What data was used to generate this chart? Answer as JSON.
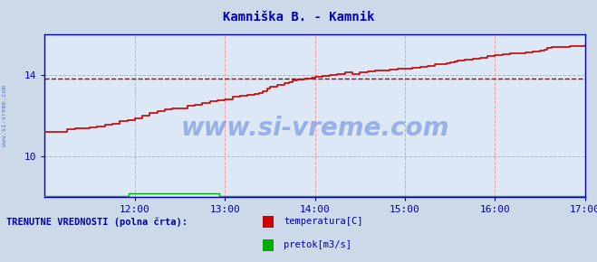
{
  "title": "Kamniška B. - Kamnik",
  "title_color": "#0000bb",
  "bg_color": "#ccd9e8",
  "plot_bg_color": "#dce8f5",
  "grid_color_v": "#ff9999",
  "grid_color_h": "#ff9999",
  "xlim": [
    0,
    360
  ],
  "ylim": [
    8,
    16
  ],
  "yticks": [
    10,
    14
  ],
  "xtick_labels": [
    "12:00",
    "13:00",
    "14:00",
    "15:00",
    "16:00",
    "17:00"
  ],
  "xtick_positions": [
    60,
    120,
    180,
    240,
    300,
    360
  ],
  "avg_line_value": 13.8,
  "avg_line_color": "#aa0000",
  "temp_color": "#cc0000",
  "flow_color": "#00aa00",
  "flow_color2": "#0000cc",
  "watermark": "www.si-vreme.com",
  "watermark_color": "#1a4acc",
  "watermark_alpha": 0.35,
  "side_label": "www.si-vreme.com",
  "legend_label1": "temperatura[C]",
  "legend_label2": "pretok[m3/s]",
  "legend_color1": "#cc0000",
  "legend_color2": "#00aa00",
  "footer_text": "TRENUTNE VREDNOSTI (polna črta):",
  "footer_color": "#0000bb",
  "axis_color": "#0000bb",
  "tick_color": "#0000bb",
  "tick_fontsize": 8,
  "title_fontsize": 10,
  "temp_data_x": [
    0,
    10,
    15,
    20,
    25,
    30,
    35,
    40,
    45,
    50,
    55,
    60,
    65,
    70,
    72,
    75,
    80,
    85,
    90,
    95,
    100,
    105,
    110,
    115,
    120,
    125,
    130,
    132,
    135,
    138,
    140,
    143,
    145,
    148,
    150,
    155,
    160,
    163,
    165,
    168,
    170,
    173,
    175,
    178,
    180,
    183,
    185,
    188,
    190,
    193,
    195,
    200,
    203,
    205,
    208,
    210,
    215,
    220,
    225,
    230,
    235,
    240,
    245,
    248,
    250,
    255,
    258,
    260,
    263,
    265,
    268,
    270,
    273,
    275,
    278,
    280,
    283,
    285,
    288,
    290,
    295,
    298,
    300,
    303,
    305,
    308,
    310,
    315,
    318,
    320,
    323,
    325,
    328,
    330,
    333,
    335,
    338,
    340,
    345,
    350,
    355,
    360
  ],
  "temp_data_y": [
    11.2,
    11.2,
    11.3,
    11.35,
    11.35,
    11.4,
    11.45,
    11.55,
    11.6,
    11.7,
    11.75,
    11.85,
    12.0,
    12.1,
    12.1,
    12.2,
    12.3,
    12.35,
    12.35,
    12.45,
    12.5,
    12.6,
    12.7,
    12.75,
    12.8,
    12.9,
    12.95,
    12.95,
    13.0,
    13.0,
    13.05,
    13.1,
    13.2,
    13.3,
    13.4,
    13.5,
    13.6,
    13.65,
    13.7,
    13.75,
    13.75,
    13.8,
    13.82,
    13.85,
    13.9,
    13.9,
    13.92,
    13.95,
    14.0,
    14.0,
    14.05,
    14.1,
    14.1,
    14.05,
    14.05,
    14.1,
    14.15,
    14.2,
    14.2,
    14.25,
    14.3,
    14.3,
    14.35,
    14.35,
    14.4,
    14.45,
    14.45,
    14.5,
    14.5,
    14.5,
    14.55,
    14.6,
    14.65,
    14.7,
    14.7,
    14.75,
    14.75,
    14.8,
    14.8,
    14.85,
    14.9,
    14.9,
    14.95,
    14.95,
    15.0,
    15.0,
    15.05,
    15.05,
    15.05,
    15.1,
    15.1,
    15.15,
    15.15,
    15.2,
    15.25,
    15.3,
    15.35,
    15.35,
    15.38,
    15.4,
    15.42,
    15.45
  ],
  "flow_data_x": [
    0,
    55,
    56,
    115,
    116,
    360
  ],
  "flow_data_y": [
    8.02,
    8.02,
    8.15,
    8.15,
    8.02,
    8.02
  ],
  "second_line_color": "#000080",
  "second_line_x": [
    0,
    360
  ],
  "second_line_y": [
    8.0,
    8.0
  ]
}
